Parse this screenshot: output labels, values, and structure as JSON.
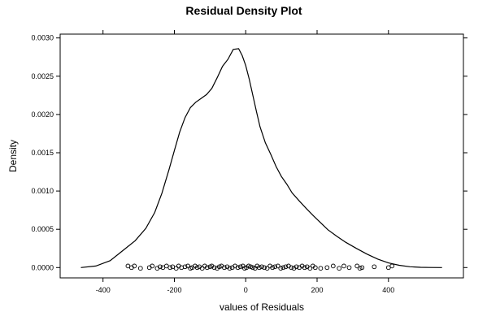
{
  "chart_data": {
    "type": "line",
    "title": "Residual Density Plot",
    "xlabel": "values of Residuals",
    "ylabel": "Density",
    "xlim": [
      -520,
      610
    ],
    "ylim": [
      -0.000135,
      0.00305
    ],
    "x_ticks": [
      -400,
      -200,
      0,
      200,
      400
    ],
    "x_tick_labels": [
      "-400",
      "-200",
      "0",
      "200",
      "400"
    ],
    "y_ticks": [
      0,
      0.0005,
      0.001,
      0.0015,
      0.002,
      0.0025,
      0.003
    ],
    "y_tick_labels": [
      "0.0000",
      "0.0005",
      "0.0010",
      "0.0015",
      "0.0020",
      "0.0025",
      "0.0030"
    ],
    "grid": false,
    "legend": "none",
    "series": [
      {
        "x": [
          -462,
          -420,
          -380,
          -345,
          -310,
          -280,
          -255,
          -235,
          -215,
          -200,
          -185,
          -170,
          -155,
          -140,
          -125,
          -110,
          -95,
          -80,
          -65,
          -50,
          -35,
          -20,
          -10,
          0,
          10,
          20,
          30,
          40,
          55,
          70,
          85,
          100,
          115,
          130,
          150,
          170,
          190,
          210,
          230,
          255,
          280,
          310,
          340,
          370,
          400,
          430,
          460,
          490,
          515,
          550
        ],
        "y": [
          0.0,
          2e-05,
          9e-05,
          0.00022,
          0.00035,
          0.00051,
          0.00072,
          0.00097,
          0.00128,
          0.00153,
          0.00177,
          0.00196,
          0.00209,
          0.00216,
          0.00221,
          0.00226,
          0.00234,
          0.00248,
          0.00263,
          0.00272,
          0.00285,
          0.00286,
          0.00277,
          0.00264,
          0.00246,
          0.00225,
          0.00204,
          0.00184,
          0.00163,
          0.00148,
          0.00132,
          0.00119,
          0.00109,
          0.000975,
          0.00087,
          0.00077,
          0.000675,
          0.000585,
          0.000495,
          0.00041,
          0.00033,
          0.00025,
          0.000175,
          0.00011,
          6e-05,
          3e-05,
          1e-05,
          3e-06,
          1e-06,
          0.0
        ]
      }
    ],
    "rug": {
      "x": [
        -330,
        -320,
        -312,
        -295,
        -270,
        -262,
        -248,
        -240,
        -232,
        -222,
        -212,
        -205,
        -195,
        -188,
        -180,
        -170,
        -162,
        -155,
        -150,
        -142,
        -136,
        -130,
        -122,
        -115,
        -108,
        -100,
        -95,
        -88,
        -80,
        -74,
        -68,
        -60,
        -52,
        -45,
        -38,
        -30,
        -22,
        -15,
        -8,
        -3,
        2,
        8,
        14,
        20,
        26,
        32,
        38,
        45,
        52,
        60,
        68,
        75,
        82,
        90,
        98,
        105,
        112,
        120,
        128,
        135,
        142,
        150,
        158,
        165,
        172,
        180,
        188,
        195,
        210,
        228,
        245,
        262,
        275,
        290,
        312,
        320,
        326,
        360,
        400,
        410
      ],
      "y": [
        2e-05,
        0.0,
        2e-05,
        -1e-05,
        0.0,
        2e-05,
        -1e-05,
        1e-05,
        0.0,
        2e-05,
        0.0,
        1e-05,
        -1e-05,
        2e-05,
        0.0,
        1e-05,
        2e-05,
        -1e-05,
        0.0,
        2e-05,
        0.0,
        1e-05,
        -1e-05,
        2e-05,
        0.0,
        1e-05,
        2e-05,
        0.0,
        -1e-05,
        1e-05,
        2e-05,
        0.0,
        1e-05,
        -1e-05,
        0.0,
        2e-05,
        0.0,
        1e-05,
        2e-05,
        -1e-05,
        0.0,
        2e-05,
        1e-05,
        0.0,
        -1e-05,
        2e-05,
        0.0,
        1e-05,
        0.0,
        -1e-05,
        2e-05,
        0.0,
        1e-05,
        2e-05,
        -1e-05,
        0.0,
        1e-05,
        2e-05,
        0.0,
        -1e-05,
        1e-05,
        0.0,
        2e-05,
        0.0,
        1e-05,
        -1e-05,
        2e-05,
        0.0,
        -1e-05,
        0.0,
        2e-05,
        -1e-05,
        2e-05,
        0.0,
        2e-05,
        -1e-05,
        0.0,
        1e-05,
        0.0,
        2e-05
      ]
    }
  }
}
